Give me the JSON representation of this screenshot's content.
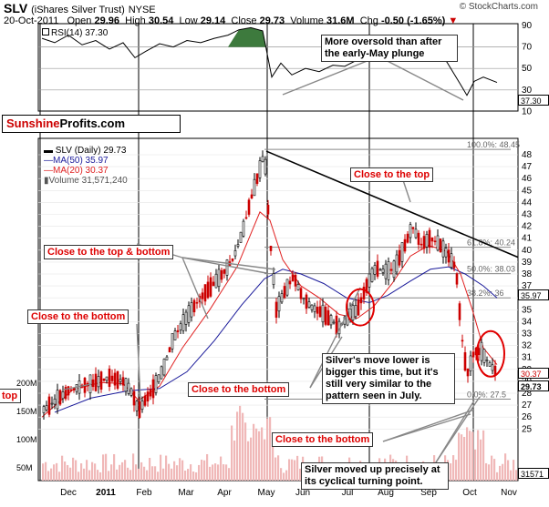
{
  "header": {
    "symbol": "SLV",
    "name": "(iShares Silver Trust)",
    "exchange": "NYSE",
    "date": "20-Oct-2011",
    "open_label": "Open",
    "open": "29.96",
    "high_label": "High",
    "high": "30.54",
    "low_label": "Low",
    "low": "29.14",
    "close_label": "Close",
    "close": "29.73",
    "volume_label": "Volume",
    "volume": "31.6M",
    "chg_label": "Chg",
    "chg": "-0.50 (-1.65%)",
    "watermark": "© StockCharts.com"
  },
  "brand": {
    "part1": "Sunshine",
    "part2": "Profits.com"
  },
  "rsi": {
    "label": "RSI(14) 37.30",
    "ticks": [
      "90",
      "70",
      "50",
      "30",
      "10"
    ],
    "last_tag": "37.30"
  },
  "price_legend": {
    "title": "SLV (Daily) 29.73",
    "ma50": "MA(50) 35.97",
    "ma20": "MA(20) 30.37",
    "volume": "Volume 31,571,240"
  },
  "price_axis": {
    "ticks": [
      "48",
      "47",
      "46",
      "45",
      "44",
      "43",
      "42",
      "41",
      "40",
      "39",
      "38",
      "37",
      "36",
      "35",
      "34",
      "33",
      "32",
      "31",
      "30",
      "29",
      "28",
      "27",
      "26",
      "25"
    ],
    "tags": {
      "ma50": "35.97",
      "ma20": "30.37",
      "close": "29.73"
    }
  },
  "volume_axis": {
    "ticks": [
      "200M",
      "150M",
      "100M",
      "50M"
    ],
    "last_tag": "31571"
  },
  "x_axis": {
    "labels": [
      "Dec",
      "2011",
      "Feb",
      "Mar",
      "Apr",
      "May",
      "Jun",
      "Jul",
      "Aug",
      "Sep",
      "Oct",
      "Nov"
    ]
  },
  "fib_labels": [
    "100.0%: 48.45",
    "61.8%: 40.24",
    "50.0%: 38.03",
    "38.2%: 36",
    "0.0%: 27.5"
  ],
  "annotations": {
    "oversold": "More oversold than after the early-May plunge",
    "close_top": "Close to the top",
    "close_top_bottom": "Close to the top & bottom",
    "close_bottom_1": "Close to the bottom",
    "close_bottom_2": "Close to the bottom",
    "close_bottom_3": "Close to the bottom",
    "top_left": "top",
    "silver_move": "Silver's move lower is bigger this time, but it's still very similar to the pattern seen in July.",
    "cyclical": "Silver moved up precisely at its cyclical turning point."
  },
  "colors": {
    "price": "#000000",
    "ma20": "#e02020",
    "ma50": "#1a1a9a",
    "rsi_fill": "#3d7a3d",
    "volume": "#f0b8b8",
    "annotation": "#dd0000"
  }
}
